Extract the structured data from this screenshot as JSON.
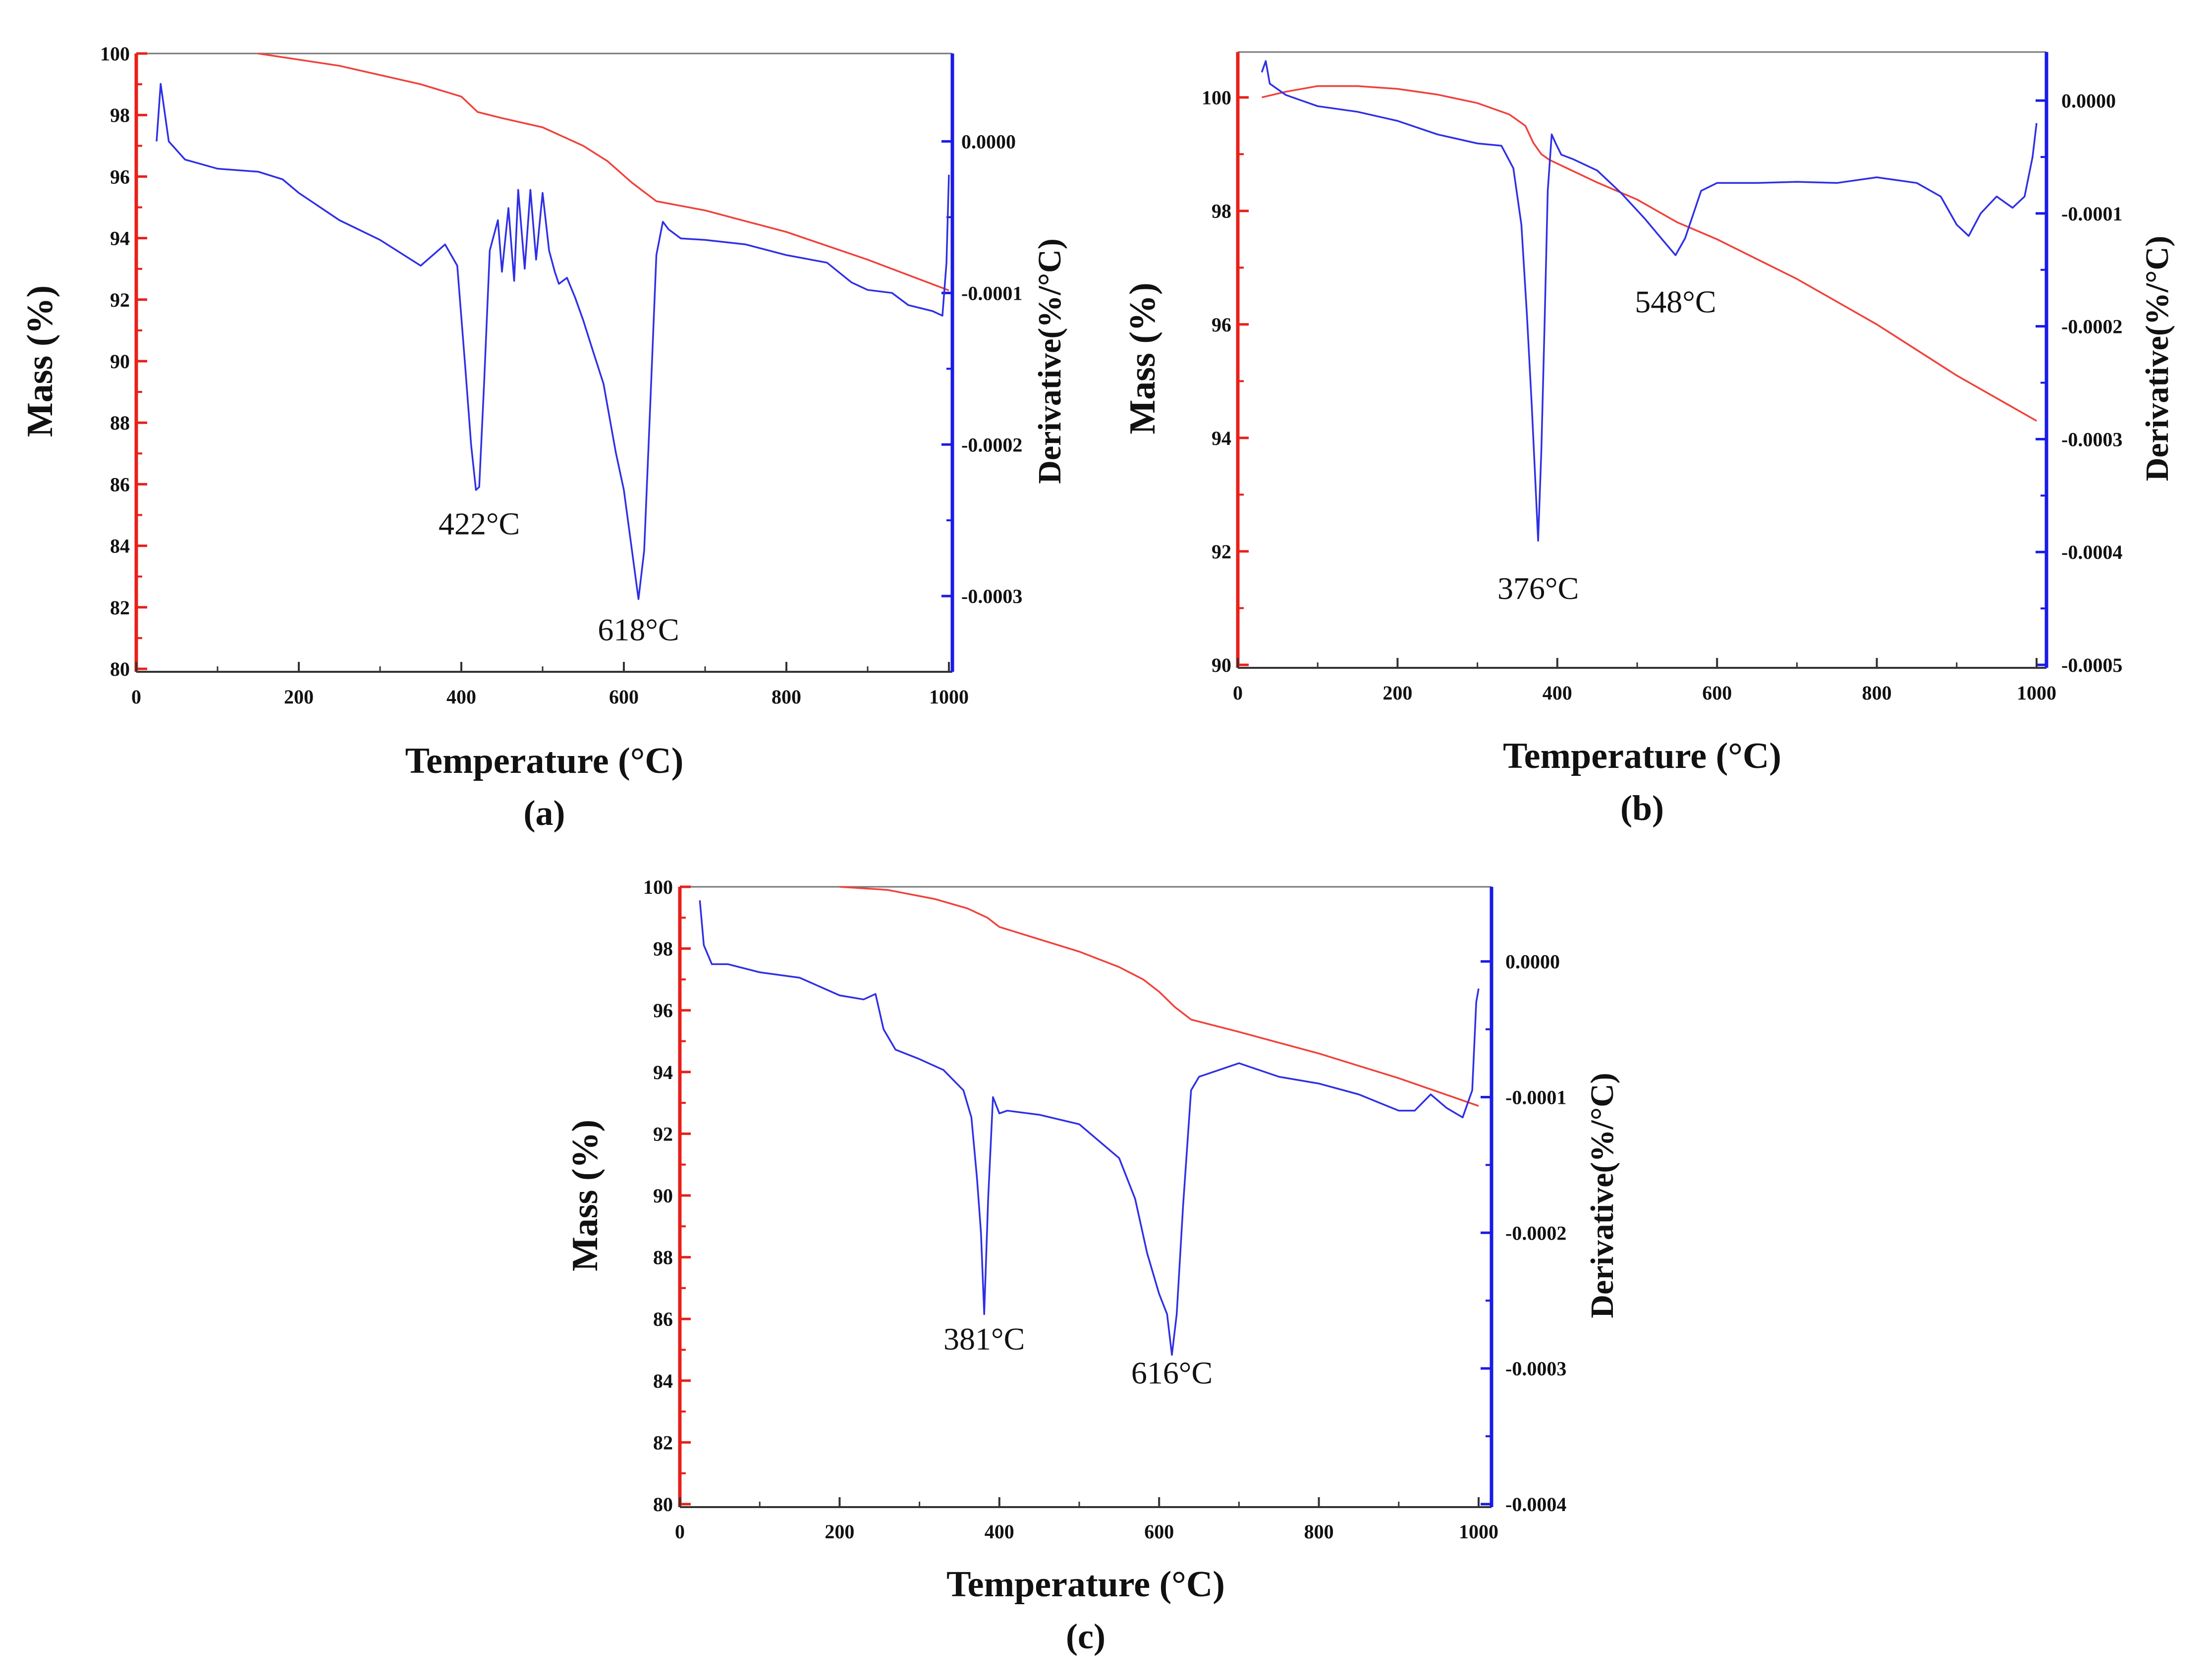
{
  "colors": {
    "mass_axis": "#e8201a",
    "derivative_axis": "#1a1ae8",
    "mass_curve": "#f0413a",
    "derivative_curve": "#2f2fe6"
  },
  "chart_data": [
    {
      "type": "line",
      "panel_label": "(a)",
      "xlabel": "Temperature (°C)",
      "ylabel": "Mass (%)",
      "y2label": "Derivative(%/°C)",
      "xlim": [
        0,
        1000
      ],
      "ylim": [
        80,
        100
      ],
      "y2lim": [
        -0.000348,
        5.8e-05
      ],
      "x_ticks": [
        "0",
        "200",
        "400",
        "600",
        "800",
        "1000"
      ],
      "y_ticks": [
        "80",
        "82",
        "84",
        "86",
        "88",
        "90",
        "92",
        "94",
        "96",
        "98",
        "100"
      ],
      "y2_ticks": [
        "0.0000",
        "-0.0001",
        "-0.0002",
        "-0.0003"
      ],
      "y2_tick_values": [
        0,
        -0.0001,
        -0.0002,
        -0.0003
      ],
      "series": [
        {
          "name": "Mass",
          "axis": "left",
          "x": [
            150,
            250,
            350,
            400,
            420,
            450,
            500,
            550,
            580,
            610,
            640,
            700,
            800,
            900,
            1000
          ],
          "y": [
            100,
            99.6,
            99.0,
            98.6,
            98.1,
            97.9,
            97.6,
            97.0,
            96.5,
            95.8,
            95.2,
            94.9,
            94.2,
            93.3,
            92.3
          ]
        },
        {
          "name": "Derivative",
          "axis": "right",
          "x": [
            25,
            30,
            40,
            60,
            100,
            150,
            180,
            200,
            250,
            300,
            350,
            380,
            395,
            405,
            412,
            418,
            422,
            428,
            435,
            445,
            450,
            458,
            465,
            470,
            478,
            485,
            492,
            500,
            508,
            515,
            520,
            530,
            540,
            550,
            560,
            575,
            590,
            600,
            610,
            618,
            625,
            632,
            640,
            648,
            655,
            670,
            700,
            750,
            800,
            850,
            880,
            900,
            930,
            950,
            980,
            992,
            997,
            1000
          ],
          "y": [
            -0.0,
            3.8e-05,
            -0.0,
            -1.2e-05,
            -1.8e-05,
            -2e-05,
            -2.5e-05,
            -3.4e-05,
            -5.2e-05,
            -6.5e-05,
            -8.2e-05,
            -6.8e-05,
            -8.2e-05,
            -0.00015,
            -0.0002,
            -0.00023,
            -0.000228,
            -0.00016,
            -7.2e-05,
            -5.2e-05,
            -8.6e-05,
            -4.4e-05,
            -9.2e-05,
            -3.2e-05,
            -8.4e-05,
            -3.2e-05,
            -7.8e-05,
            -3.4e-05,
            -7.2e-05,
            -8.6e-05,
            -9.4e-05,
            -9e-05,
            -0.000103,
            -0.000118,
            -0.000135,
            -0.00016,
            -0.000205,
            -0.00023,
            -0.00027,
            -0.000302,
            -0.00027,
            -0.00018,
            -7.5e-05,
            -5.3e-05,
            -5.8e-05,
            -6.4e-05,
            -6.5e-05,
            -6.8e-05,
            -7.5e-05,
            -8e-05,
            -9.3e-05,
            -9.8e-05,
            -0.0001,
            -0.000108,
            -0.000112,
            -0.000115,
            -8e-05,
            -2.2e-05
          ]
        }
      ],
      "annotations": [
        {
          "text": "422°C",
          "x": 422,
          "y": -0.000252
        },
        {
          "text": "618°C",
          "x": 618,
          "y": -0.000322
        }
      ]
    },
    {
      "type": "line",
      "panel_label": "(b)",
      "xlabel": "Temperature (°C)",
      "ylabel": "Mass (%)",
      "y2label": "Derivative(%/°C)",
      "xlim": [
        0,
        1000
      ],
      "ylim": [
        90,
        100.8
      ],
      "y2lim": [
        -0.0005,
        4.3e-05
      ],
      "x_ticks": [
        "0",
        "200",
        "400",
        "600",
        "800",
        "1000"
      ],
      "y_ticks": [
        "90",
        "92",
        "94",
        "96",
        "98",
        "100"
      ],
      "y2_ticks": [
        "0.0000",
        "-0.0001",
        "-0.0002",
        "-0.0003",
        "-0.0004",
        "-0.0005"
      ],
      "y2_tick_values": [
        0,
        -0.0001,
        -0.0002,
        -0.0003,
        -0.0004,
        -0.0005
      ],
      "series": [
        {
          "name": "Mass",
          "axis": "left",
          "x": [
            30,
            60,
            100,
            150,
            200,
            250,
            300,
            340,
            360,
            370,
            380,
            390,
            420,
            450,
            500,
            550,
            600,
            700,
            800,
            900,
            1000
          ],
          "y": [
            100.0,
            100.1,
            100.2,
            100.2,
            100.15,
            100.05,
            99.9,
            99.7,
            99.5,
            99.2,
            99.0,
            98.9,
            98.7,
            98.5,
            98.2,
            97.8,
            97.5,
            96.8,
            96.0,
            95.1,
            94.3
          ]
        },
        {
          "name": "Derivative",
          "axis": "right",
          "x": [
            30,
            35,
            40,
            60,
            80,
            100,
            150,
            200,
            250,
            300,
            330,
            345,
            355,
            362,
            368,
            372,
            376,
            380,
            384,
            388,
            393,
            398,
            405,
            420,
            450,
            480,
            510,
            530,
            548,
            560,
            580,
            600,
            650,
            700,
            750,
            800,
            850,
            880,
            900,
            915,
            930,
            950,
            970,
            985,
            995,
            1000
          ],
          "y": [
            2.5e-05,
            3.5e-05,
            1.5e-05,
            5e-06,
            -0.0,
            -5e-06,
            -1e-05,
            -1.8e-05,
            -3e-05,
            -3.8e-05,
            -4e-05,
            -6e-05,
            -0.00011,
            -0.00019,
            -0.00027,
            -0.00033,
            -0.00039,
            -0.00031,
            -0.0002,
            -8e-05,
            -3e-05,
            -3.8e-05,
            -4.8e-05,
            -5.2e-05,
            -6.2e-05,
            -8.2e-05,
            -0.000105,
            -0.000122,
            -0.000137,
            -0.000122,
            -8e-05,
            -7.3e-05,
            -7.3e-05,
            -7.2e-05,
            -7.3e-05,
            -6.8e-05,
            -7.3e-05,
            -8.5e-05,
            -0.00011,
            -0.00012,
            -0.0001,
            -8.5e-05,
            -9.5e-05,
            -8.5e-05,
            -5e-05,
            -2e-05
          ]
        }
      ],
      "annotations": [
        {
          "text": "376°C",
          "x": 376,
          "y": -0.000432
        },
        {
          "text": "548°C",
          "x": 548,
          "y": -0.000178
        }
      ]
    },
    {
      "type": "line",
      "panel_label": "(c)",
      "xlabel": "Temperature (°C)",
      "ylabel": "Mass (%)",
      "y2label": "Derivative(%/°C)",
      "xlim": [
        0,
        1000
      ],
      "ylim": [
        80,
        100
      ],
      "y2lim": [
        -0.0004,
        5.5e-05
      ],
      "x_ticks": [
        "0",
        "200",
        "400",
        "600",
        "800",
        "1000"
      ],
      "y_ticks": [
        "80",
        "82",
        "84",
        "86",
        "88",
        "90",
        "92",
        "94",
        "96",
        "98",
        "100"
      ],
      "y2_ticks": [
        "0.0000",
        "-0.0001",
        "-0.0002",
        "-0.0003",
        "-0.0004"
      ],
      "y2_tick_values": [
        0,
        -0.0001,
        -0.0002,
        -0.0003,
        -0.0004
      ],
      "series": [
        {
          "name": "Mass",
          "axis": "left",
          "x": [
            200,
            260,
            320,
            360,
            385,
            400,
            450,
            500,
            550,
            580,
            600,
            620,
            640,
            700,
            800,
            900,
            1000
          ],
          "y": [
            100,
            99.9,
            99.6,
            99.3,
            99.0,
            98.7,
            98.3,
            97.9,
            97.4,
            97.0,
            96.6,
            96.1,
            95.7,
            95.3,
            94.6,
            93.8,
            92.9
          ]
        },
        {
          "name": "Derivative",
          "axis": "right",
          "x": [
            25,
            30,
            40,
            60,
            100,
            150,
            200,
            230,
            245,
            255,
            270,
            300,
            330,
            355,
            365,
            372,
            377,
            381,
            386,
            392,
            400,
            410,
            450,
            500,
            550,
            570,
            585,
            600,
            610,
            616,
            622,
            630,
            640,
            650,
            700,
            750,
            800,
            850,
            900,
            920,
            940,
            960,
            980,
            992,
            997,
            1000
          ],
          "y": [
            4.5e-05,
            1.2e-05,
            -2e-06,
            -2e-06,
            -8e-06,
            -1.2e-05,
            -2.5e-05,
            -2.8e-05,
            -2.4e-05,
            -5e-05,
            -6.5e-05,
            -7.2e-05,
            -8e-05,
            -9.5e-05,
            -0.000115,
            -0.00016,
            -0.0002,
            -0.00026,
            -0.000175,
            -0.0001,
            -0.000112,
            -0.00011,
            -0.000113,
            -0.00012,
            -0.000145,
            -0.000175,
            -0.000215,
            -0.000245,
            -0.00026,
            -0.00029,
            -0.00026,
            -0.00018,
            -9.5e-05,
            -8.5e-05,
            -7.5e-05,
            -8.5e-05,
            -9e-05,
            -9.8e-05,
            -0.00011,
            -0.00011,
            -9.8e-05,
            -0.000108,
            -0.000115,
            -9.5e-05,
            -3e-05,
            -2e-05
          ]
        }
      ],
      "annotations": [
        {
          "text": "381°C",
          "x": 381,
          "y": -0.000278
        },
        {
          "text": "616°C",
          "x": 616,
          "y": -0.000303
        }
      ]
    }
  ]
}
